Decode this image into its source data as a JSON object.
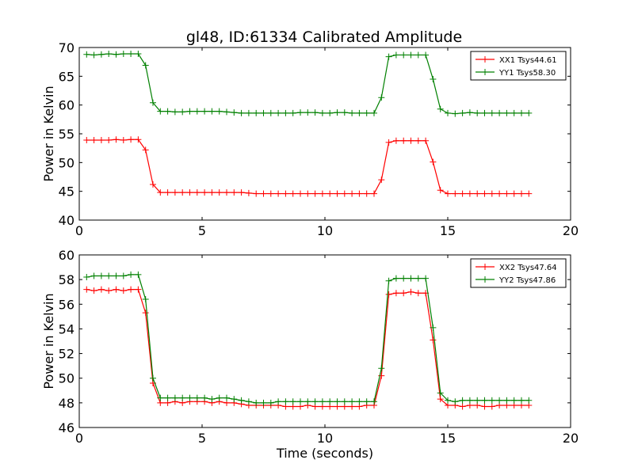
{
  "title": "gl48, ID:61334 Calibrated Amplitude",
  "chart_data": [
    {
      "type": "line",
      "ylabel": "Power in Kelvin",
      "xlabel": "",
      "xlim": [
        0,
        20
      ],
      "ylim": [
        40,
        70
      ],
      "xticks": [
        "0",
        "5",
        "10",
        "15",
        "20"
      ],
      "yticks": [
        "40",
        "45",
        "50",
        "55",
        "60",
        "65",
        "70"
      ],
      "grid": false,
      "legend_position": "top-right",
      "x": [
        0.3,
        0.6,
        0.9,
        1.2,
        1.5,
        1.8,
        2.1,
        2.4,
        2.7,
        3.0,
        3.3,
        3.6,
        3.9,
        4.2,
        4.5,
        4.8,
        5.1,
        5.4,
        5.7,
        6.0,
        6.3,
        6.6,
        6.9,
        7.2,
        7.5,
        7.8,
        8.1,
        8.4,
        8.7,
        9.0,
        9.3,
        9.6,
        9.9,
        10.2,
        10.5,
        10.8,
        11.1,
        11.4,
        11.7,
        12.0,
        12.3,
        12.6,
        12.9,
        13.2,
        13.5,
        13.8,
        14.1,
        14.4,
        14.7,
        15.0,
        15.3,
        15.6,
        15.9,
        16.2,
        16.5,
        16.8,
        17.1,
        17.4,
        17.7,
        18.0,
        18.3
      ],
      "series": [
        {
          "name": "XX1 Tsys44.61",
          "color": "#ff0000",
          "values": [
            53.9,
            53.9,
            53.9,
            53.9,
            54.0,
            53.9,
            54.0,
            54.0,
            52.2,
            46.2,
            44.8,
            44.8,
            44.8,
            44.8,
            44.8,
            44.8,
            44.8,
            44.8,
            44.8,
            44.8,
            44.8,
            44.8,
            44.7,
            44.6,
            44.6,
            44.6,
            44.6,
            44.6,
            44.6,
            44.6,
            44.6,
            44.6,
            44.6,
            44.6,
            44.6,
            44.6,
            44.6,
            44.6,
            44.6,
            44.6,
            47.0,
            53.5,
            53.8,
            53.8,
            53.8,
            53.8,
            53.8,
            50.1,
            45.2,
            44.6,
            44.6,
            44.6,
            44.6,
            44.6,
            44.6,
            44.6,
            44.6,
            44.6,
            44.6,
            44.6,
            44.6
          ]
        },
        {
          "name": "YY1 Tsys58.30",
          "color": "#008000",
          "values": [
            68.8,
            68.7,
            68.8,
            68.9,
            68.8,
            68.9,
            68.9,
            68.9,
            66.9,
            60.4,
            58.9,
            58.9,
            58.8,
            58.8,
            58.9,
            58.9,
            58.9,
            58.9,
            58.9,
            58.8,
            58.7,
            58.6,
            58.6,
            58.6,
            58.6,
            58.6,
            58.6,
            58.6,
            58.6,
            58.7,
            58.7,
            58.7,
            58.6,
            58.6,
            58.7,
            58.7,
            58.6,
            58.6,
            58.6,
            58.6,
            61.3,
            68.4,
            68.7,
            68.7,
            68.7,
            68.7,
            68.7,
            64.5,
            59.3,
            58.6,
            58.5,
            58.6,
            58.7,
            58.6,
            58.6,
            58.6,
            58.6,
            58.6,
            58.6,
            58.6,
            58.6
          ]
        }
      ]
    },
    {
      "type": "line",
      "ylabel": "Power in Kelvin",
      "xlabel": "Time (seconds)",
      "xlim": [
        0,
        20
      ],
      "ylim": [
        46,
        60
      ],
      "xticks": [
        "0",
        "5",
        "10",
        "15",
        "20"
      ],
      "yticks": [
        "46",
        "48",
        "50",
        "52",
        "54",
        "56",
        "58",
        "60"
      ],
      "grid": false,
      "legend_position": "top-right",
      "x": [
        0.3,
        0.6,
        0.9,
        1.2,
        1.5,
        1.8,
        2.1,
        2.4,
        2.7,
        3.0,
        3.3,
        3.6,
        3.9,
        4.2,
        4.5,
        4.8,
        5.1,
        5.4,
        5.7,
        6.0,
        6.3,
        6.6,
        6.9,
        7.2,
        7.5,
        7.8,
        8.1,
        8.4,
        8.7,
        9.0,
        9.3,
        9.6,
        9.9,
        10.2,
        10.5,
        10.8,
        11.1,
        11.4,
        11.7,
        12.0,
        12.3,
        12.6,
        12.9,
        13.2,
        13.5,
        13.8,
        14.1,
        14.4,
        14.7,
        15.0,
        15.3,
        15.6,
        15.9,
        16.2,
        16.5,
        16.8,
        17.1,
        17.4,
        17.7,
        18.0,
        18.3
      ],
      "series": [
        {
          "name": "XX2 Tsys47.64",
          "color": "#ff0000",
          "values": [
            57.2,
            57.1,
            57.2,
            57.1,
            57.2,
            57.1,
            57.2,
            57.2,
            55.3,
            49.6,
            48.0,
            48.0,
            48.1,
            48.0,
            48.1,
            48.1,
            48.1,
            48.0,
            48.1,
            48.0,
            48.0,
            47.9,
            47.8,
            47.8,
            47.8,
            47.8,
            47.8,
            47.7,
            47.7,
            47.7,
            47.8,
            47.7,
            47.7,
            47.7,
            47.7,
            47.7,
            47.7,
            47.7,
            47.8,
            47.8,
            50.2,
            56.8,
            56.9,
            56.9,
            57.0,
            56.9,
            56.9,
            53.1,
            48.3,
            47.8,
            47.8,
            47.7,
            47.8,
            47.8,
            47.7,
            47.7,
            47.8,
            47.8,
            47.8,
            47.8,
            47.8
          ]
        },
        {
          "name": "YY2 Tsys47.86",
          "color": "#008000",
          "values": [
            58.2,
            58.3,
            58.3,
            58.3,
            58.3,
            58.3,
            58.4,
            58.4,
            56.4,
            50.0,
            48.4,
            48.4,
            48.4,
            48.4,
            48.4,
            48.4,
            48.4,
            48.3,
            48.4,
            48.4,
            48.3,
            48.2,
            48.1,
            48.0,
            48.0,
            48.0,
            48.1,
            48.1,
            48.1,
            48.1,
            48.1,
            48.1,
            48.1,
            48.1,
            48.1,
            48.1,
            48.1,
            48.1,
            48.1,
            48.1,
            50.8,
            57.9,
            58.1,
            58.1,
            58.1,
            58.1,
            58.1,
            54.1,
            48.8,
            48.2,
            48.1,
            48.2,
            48.2,
            48.2,
            48.2,
            48.2,
            48.2,
            48.2,
            48.2,
            48.2,
            48.2
          ]
        }
      ]
    }
  ]
}
